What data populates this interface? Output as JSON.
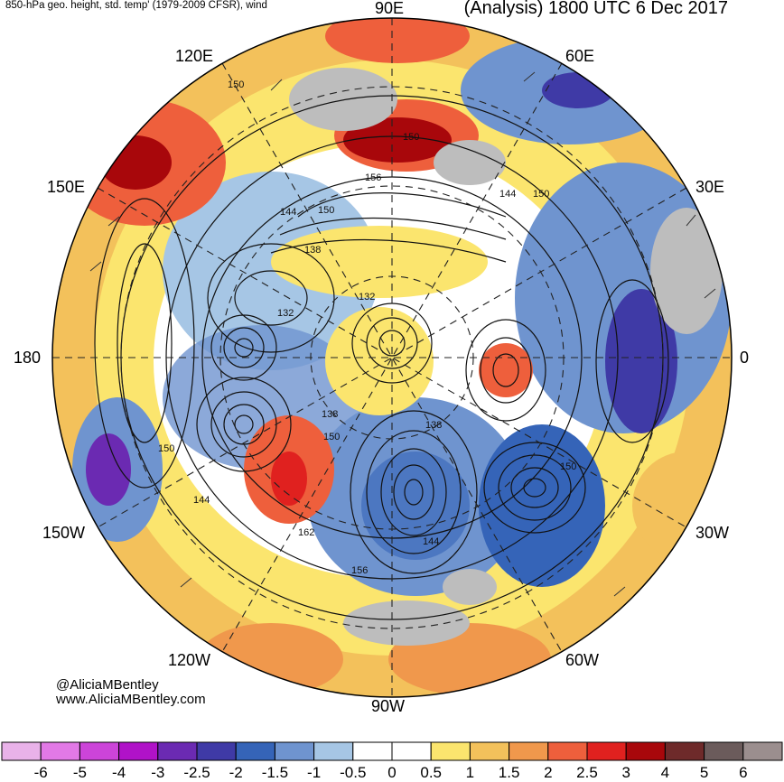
{
  "header": {
    "left_title": "850-hPa geo. height, std. temp' (1979-2009 CFSR), wind",
    "right_title": "(Analysis) 1800 UTC 6 Dec 2017"
  },
  "longitude_labels": {
    "top": "90E",
    "upper_left": "120E",
    "upper_right": "60E",
    "left_upper": "150E",
    "right_upper": "30E",
    "left": "180",
    "right": "0",
    "left_lower": "150W",
    "right_lower": "30W",
    "lower_left": "120W",
    "lower_right": "60W",
    "bottom": "90W"
  },
  "contour_labels": [
    "150",
    "150",
    "156",
    "144",
    "150",
    "144",
    "150",
    "138",
    "132",
    "132",
    "138",
    "150",
    "138",
    "150",
    "150",
    "144",
    "162",
    "144",
    "156"
  ],
  "credit": {
    "handle": "@AliciaMBentley",
    "website": "www.AliciaMBentley.com"
  },
  "colorbar": {
    "colors": [
      "#e9b2e9",
      "#e279e6",
      "#cc44d9",
      "#b012c8",
      "#6b2ab2",
      "#3f3aa6",
      "#3564b8",
      "#6f94cf",
      "#a6c6e5",
      "#ffffff",
      "#ffffff",
      "#fbe56e",
      "#f3c15b",
      "#f0984c",
      "#ee5f3c",
      "#e0211f",
      "#a8070b",
      "#6e2a2a",
      "#6b5b5b",
      "#9b8e8e"
    ],
    "tick_labels": [
      "-6",
      "-5",
      "-4",
      "-3",
      "-2.5",
      "-2",
      "-1.5",
      "-1",
      "-0.5",
      "0",
      "0.5",
      "1",
      "1.5",
      "2",
      "2.5",
      "3",
      "4",
      "5",
      "6"
    ]
  }
}
